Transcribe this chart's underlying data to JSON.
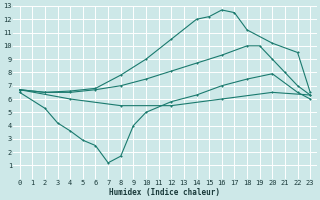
{
  "bg_color": "#cde8e8",
  "grid_color": "#ffffff",
  "line_color": "#1a7a6e",
  "xlabel": "Humidex (Indice chaleur)",
  "xlim": [
    -0.5,
    23.5
  ],
  "ylim": [
    0,
    13
  ],
  "xticks": [
    0,
    1,
    2,
    3,
    4,
    5,
    6,
    7,
    8,
    9,
    10,
    11,
    12,
    13,
    14,
    15,
    16,
    17,
    18,
    19,
    20,
    21,
    22,
    23
  ],
  "yticks": [
    1,
    2,
    3,
    4,
    5,
    6,
    7,
    8,
    9,
    10,
    11,
    12,
    13
  ],
  "curve_top_x": [
    0,
    2,
    4,
    6,
    8,
    10,
    12,
    14,
    15,
    16,
    17,
    18,
    20,
    22,
    23
  ],
  "curve_top_y": [
    6.7,
    6.5,
    6.6,
    6.8,
    7.8,
    9.0,
    10.5,
    12.0,
    12.2,
    12.7,
    12.5,
    11.2,
    10.2,
    9.5,
    6.5
  ],
  "curve_mid1_x": [
    0,
    2,
    4,
    6,
    8,
    10,
    12,
    14,
    16,
    18,
    19,
    20,
    21,
    22,
    23
  ],
  "curve_mid1_y": [
    6.7,
    6.5,
    6.5,
    6.7,
    7.0,
    7.5,
    8.1,
    8.7,
    9.3,
    10.0,
    10.0,
    9.0,
    8.0,
    7.0,
    6.3
  ],
  "curve_mid2_x": [
    0,
    4,
    8,
    12,
    16,
    20,
    23
  ],
  "curve_mid2_y": [
    6.7,
    6.0,
    5.5,
    5.5,
    6.0,
    6.5,
    6.3
  ],
  "curve_dip_x": [
    0,
    2,
    3,
    4,
    5,
    6,
    7,
    8,
    9,
    10,
    12,
    14,
    16,
    18,
    20,
    22,
    23
  ],
  "curve_dip_y": [
    6.5,
    5.3,
    4.2,
    3.6,
    2.9,
    2.5,
    1.2,
    1.7,
    4.0,
    5.0,
    5.8,
    6.3,
    7.0,
    7.5,
    7.9,
    6.5,
    6.0
  ]
}
